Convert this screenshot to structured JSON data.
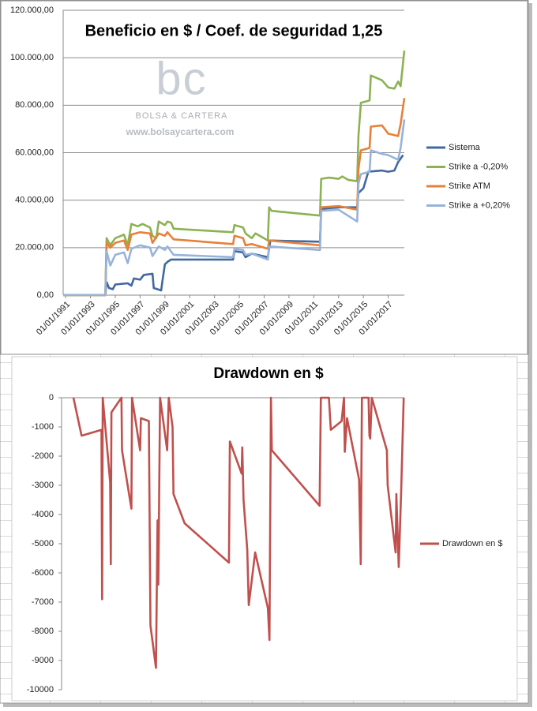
{
  "watermark": {
    "logo": "bc",
    "name": "BOLSA & CARTERA",
    "url": "www.bolsaycartera.com"
  },
  "chart_data": [
    {
      "type": "line",
      "title": "Beneficio en $ / Coef. de seguridad 1,25",
      "xlim": [
        1990.8,
        2018.3
      ],
      "xticks": [
        {
          "value": 1991,
          "label": "01/01/1991"
        },
        {
          "value": 1993,
          "label": "01/01/1993"
        },
        {
          "value": 1995,
          "label": "01/01/1995"
        },
        {
          "value": 1997,
          "label": "01/01/1997"
        },
        {
          "value": 1999,
          "label": "01/01/1999"
        },
        {
          "value": 2001,
          "label": "01/01/2001"
        },
        {
          "value": 2003,
          "label": "01/01/2003"
        },
        {
          "value": 2005,
          "label": "01/01/2005"
        },
        {
          "value": 2007,
          "label": "01/01/2007"
        },
        {
          "value": 2009,
          "label": "01/01/2009"
        },
        {
          "value": 2011,
          "label": "01/01/2011"
        },
        {
          "value": 2013,
          "label": "01/01/2013"
        },
        {
          "value": 2015,
          "label": "01/01/2015"
        },
        {
          "value": 2017,
          "label": "01/01/2017"
        }
      ],
      "ylim": [
        0,
        120000
      ],
      "yticks": [
        {
          "value": 0,
          "label": "0,00"
        },
        {
          "value": 20000,
          "label": "20.000,00"
        },
        {
          "value": 40000,
          "label": "40.000,00"
        },
        {
          "value": 60000,
          "label": "60.000,00"
        },
        {
          "value": 80000,
          "label": "80.000,00"
        },
        {
          "value": 100000,
          "label": "100.000,00"
        },
        {
          "value": 120000,
          "label": "120.000,00"
        }
      ],
      "grid": true,
      "legend": "right",
      "series": [
        {
          "name": "Sistema",
          "color": "#41689f",
          "x": [
            1990.8,
            1994.2,
            1994.3,
            1994.5,
            1994.8,
            1995,
            1996,
            1996.3,
            1996.5,
            1997,
            1997.3,
            1998,
            1998.1,
            1998.7,
            1998.8,
            1999,
            1999.2,
            1999.5,
            2000,
            2004.5,
            2004.6,
            2005.3,
            2005.5,
            2006,
            2007.3,
            2007.5,
            2011.5,
            2011.6,
            2012,
            2013,
            2014.5,
            2014.6,
            2015,
            2015.4,
            2016.5,
            2017,
            2017.5,
            2017.8,
            2018.2
          ],
          "values": [
            0,
            0,
            5500,
            3000,
            2500,
            4500,
            5000,
            4000,
            7000,
            6500,
            8500,
            9000,
            3000,
            2000,
            6000,
            13000,
            14000,
            15000,
            15000,
            15000,
            18500,
            18000,
            16000,
            17500,
            16000,
            23000,
            22500,
            36000,
            36500,
            37000,
            37000,
            43000,
            45000,
            52000,
            52500,
            52000,
            52500,
            56000,
            59000
          ]
        },
        {
          "name": "Strike a -0,20%",
          "color": "#8cb252",
          "x": [
            1990.8,
            1994.2,
            1994.3,
            1994.6,
            1995,
            1995.7,
            1996,
            1996.3,
            1996.8,
            1997.2,
            1997.8,
            1998,
            1998.3,
            1998.5,
            1999,
            1999.2,
            1999.5,
            1999.7,
            2004.5,
            2004.6,
            2005.3,
            2005.5,
            2006,
            2006.3,
            2007.3,
            2007.4,
            2007.6,
            2011.5,
            2011.6,
            2012.2,
            2013,
            2013.3,
            2013.8,
            2014.5,
            2014.6,
            2014.8,
            2015.5,
            2015.6,
            2016.5,
            2017,
            2017.5,
            2017.8,
            2018,
            2018.3
          ],
          "values": [
            0,
            0,
            24000,
            21000,
            24000,
            25500,
            21000,
            30000,
            29000,
            30000,
            28500,
            25000,
            24000,
            31000,
            29500,
            31000,
            30500,
            28000,
            26500,
            29500,
            28500,
            26000,
            24000,
            26000,
            23000,
            37000,
            35500,
            33500,
            49000,
            49500,
            49000,
            50000,
            48500,
            48000,
            67000,
            81000,
            82000,
            92500,
            90500,
            87500,
            87000,
            90000,
            88000,
            103000
          ]
        },
        {
          "name": "Strike ATM",
          "color": "#e6813a",
          "x": [
            1990.8,
            1994.2,
            1994.3,
            1994.6,
            1995,
            1995.7,
            1996,
            1996.3,
            1997,
            1997.8,
            1998,
            1998.5,
            1999,
            1999.2,
            1999.7,
            2004.5,
            2004.6,
            2005.3,
            2005.5,
            2006,
            2007.3,
            2007.4,
            2011.5,
            2011.6,
            2013,
            2014.5,
            2014.6,
            2014.8,
            2015.5,
            2015.6,
            2016.5,
            2017,
            2017.8,
            2018,
            2018.3
          ],
          "values": [
            0,
            0,
            22000,
            20000,
            22000,
            23000,
            19000,
            25500,
            26500,
            26000,
            22000,
            26000,
            25000,
            26500,
            23500,
            21500,
            25000,
            24000,
            21000,
            21500,
            19500,
            23000,
            21000,
            37000,
            37500,
            36000,
            53000,
            61000,
            62000,
            71000,
            71500,
            68000,
            67000,
            72000,
            83000
          ]
        },
        {
          "name": "Strike a +0,20%",
          "color": "#97b3da",
          "x": [
            1990.8,
            1994.2,
            1994.3,
            1994.6,
            1995,
            1995.7,
            1996,
            1996.3,
            1997,
            1997.8,
            1998,
            1998.5,
            1999,
            1999.2,
            1999.7,
            2004.5,
            2004.6,
            2005.3,
            2005.5,
            2006,
            2007.3,
            2007.4,
            2011.5,
            2011.6,
            2013,
            2014.5,
            2014.6,
            2014.8,
            2015.5,
            2015.6,
            2016.5,
            2017,
            2017.8,
            2018,
            2018.3
          ],
          "values": [
            0,
            0,
            18500,
            12500,
            17000,
            18000,
            13500,
            19500,
            21000,
            20000,
            16500,
            20500,
            19000,
            20500,
            17000,
            16000,
            19500,
            19000,
            17000,
            17500,
            15000,
            20500,
            19000,
            35500,
            36000,
            31000,
            47000,
            51000,
            52000,
            61000,
            59500,
            59000,
            57000,
            62000,
            74000
          ]
        }
      ]
    },
    {
      "type": "line",
      "title": "Drawdown en $",
      "xlim": [
        1990.8,
        2018.3
      ],
      "ylim": [
        -10000,
        0
      ],
      "yticks": [
        0,
        -1000,
        -2000,
        -3000,
        -4000,
        -5000,
        -6000,
        -7000,
        -8000,
        -9000,
        -10000
      ],
      "grid": false,
      "legend": "right",
      "series": [
        {
          "name": "Drawdown en $",
          "color": "#c0504d",
          "x": [
            1991.75,
            1992.4,
            1994.0,
            1994.05,
            1994.1,
            1994.7,
            1994.75,
            1994.8,
            1995.6,
            1995.65,
            1996.4,
            1996.45,
            1997.1,
            1997.16,
            1997.8,
            1997.93,
            1998.37,
            1998.5,
            1998.56,
            1998.7,
            1999.27,
            1999.4,
            1999.7,
            1999.78,
            2000.67,
            2004.23,
            2004.3,
            2005.25,
            2005.3,
            2005.4,
            2005.7,
            2005.82,
            2006.33,
            2007.35,
            2007.48,
            2007.6,
            2007.67,
            2011.5,
            2011.6,
            2012.25,
            2012.4,
            2013.27,
            2013.46,
            2013.52,
            2013.7,
            2014.67,
            2014.8,
            2014.9,
            2015.43,
            2015.5,
            2015.56,
            2015.69,
            2016.9,
            2016.96,
            2017.6,
            2017.66,
            2017.85,
            2018.04,
            2018.25
          ],
          "values": [
            0,
            -1300,
            -1100,
            -6900,
            0,
            -2900,
            -5700,
            -500,
            0,
            -1800,
            -3800,
            0,
            -1800,
            -700,
            -800,
            -7800,
            -9250,
            -4200,
            -6400,
            0,
            -1800,
            0,
            -1000,
            -3300,
            -4300,
            -5650,
            -1500,
            -2600,
            -1700,
            -3500,
            -5200,
            -7100,
            -5300,
            -7200,
            -8300,
            0,
            -1800,
            -3700,
            0,
            0,
            -1100,
            -800,
            0,
            -1850,
            -700,
            -2800,
            -5700,
            0,
            0,
            -1300,
            -1400,
            0,
            -1800,
            -3000,
            -5300,
            -3300,
            -5800,
            -3300,
            0
          ]
        }
      ]
    }
  ]
}
